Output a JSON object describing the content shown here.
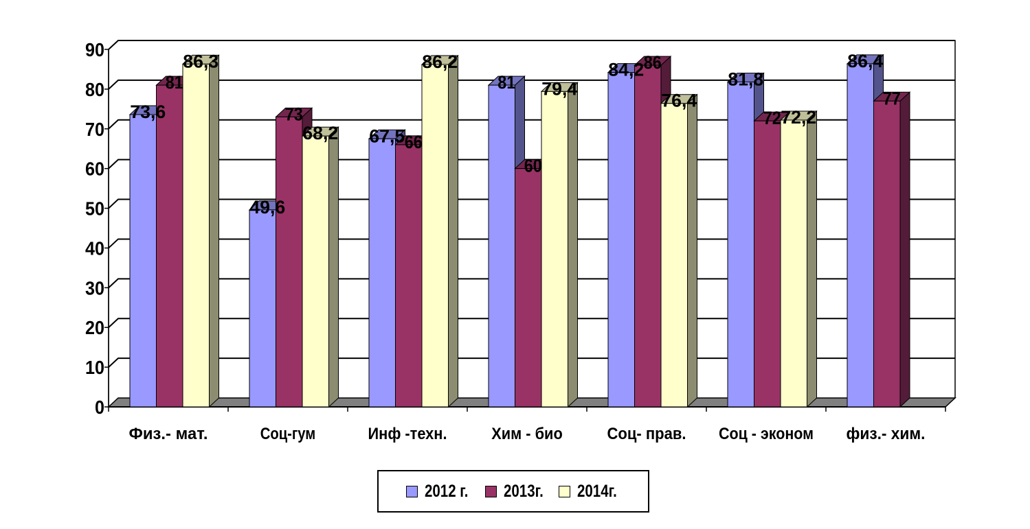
{
  "chart_data": {
    "type": "bar",
    "categories": [
      "Физ.- мат.",
      "Соц-гум",
      "Инф -техн.",
      "Хим - био",
      "Соц- прав.",
      "Соц - эконом",
      "физ.- хим."
    ],
    "series": [
      {
        "name": "2012 г.",
        "values": [
          73.6,
          49.6,
          67.5,
          81,
          84.2,
          81.8,
          86.4
        ],
        "labels": [
          "73,6",
          "49,6",
          "67,5",
          "81",
          "84,2",
          "81,8",
          "86,4"
        ],
        "color": "#9999ff"
      },
      {
        "name": "2013г.",
        "values": [
          81,
          73,
          66,
          60,
          86,
          72,
          77
        ],
        "labels": [
          "81",
          "73",
          "66",
          "60",
          "86",
          "72",
          "77"
        ],
        "color": "#993366"
      },
      {
        "name": "2014г.",
        "values": [
          86.3,
          68.2,
          86.2,
          79.4,
          76.4,
          72.2,
          null
        ],
        "labels": [
          "86,3",
          "68,2",
          "86,2",
          "79,4",
          "76,4",
          "72,2",
          ""
        ],
        "color": "#ffffcc"
      }
    ],
    "ylim": [
      0,
      90
    ],
    "yticks": [
      "0",
      "10",
      "20",
      "30",
      "40",
      "50",
      "60",
      "70",
      "80",
      "90"
    ],
    "grid": true,
    "legend_position": "bottom",
    "title": "",
    "xlabel": "",
    "ylabel": ""
  }
}
